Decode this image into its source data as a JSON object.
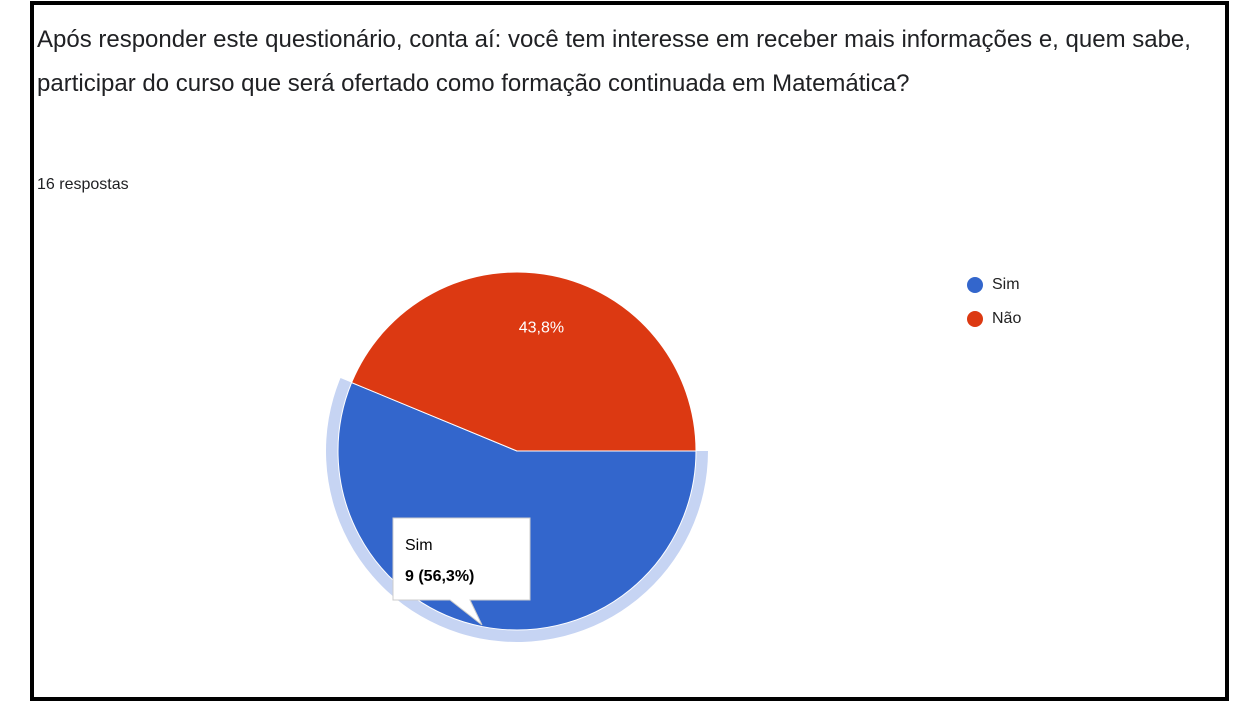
{
  "chart_data": {
    "type": "pie",
    "title": "Após responder este questionário, conta aí: você tem interesse em receber mais informações e, quem sabe, participar do curso que será ofertado como formação continuada em Matemática?",
    "subtitle": "16 respostas",
    "categories": [
      "Sim",
      "Não"
    ],
    "values": [
      56.3,
      43.8
    ],
    "value_labels": [
      "56,3%",
      "43,8%"
    ],
    "colors": [
      "#3366cc",
      "#dc3912"
    ],
    "start_angle": 90,
    "legend": "right",
    "tooltip": {
      "label": "9 (56,3%)"
    }
  }
}
